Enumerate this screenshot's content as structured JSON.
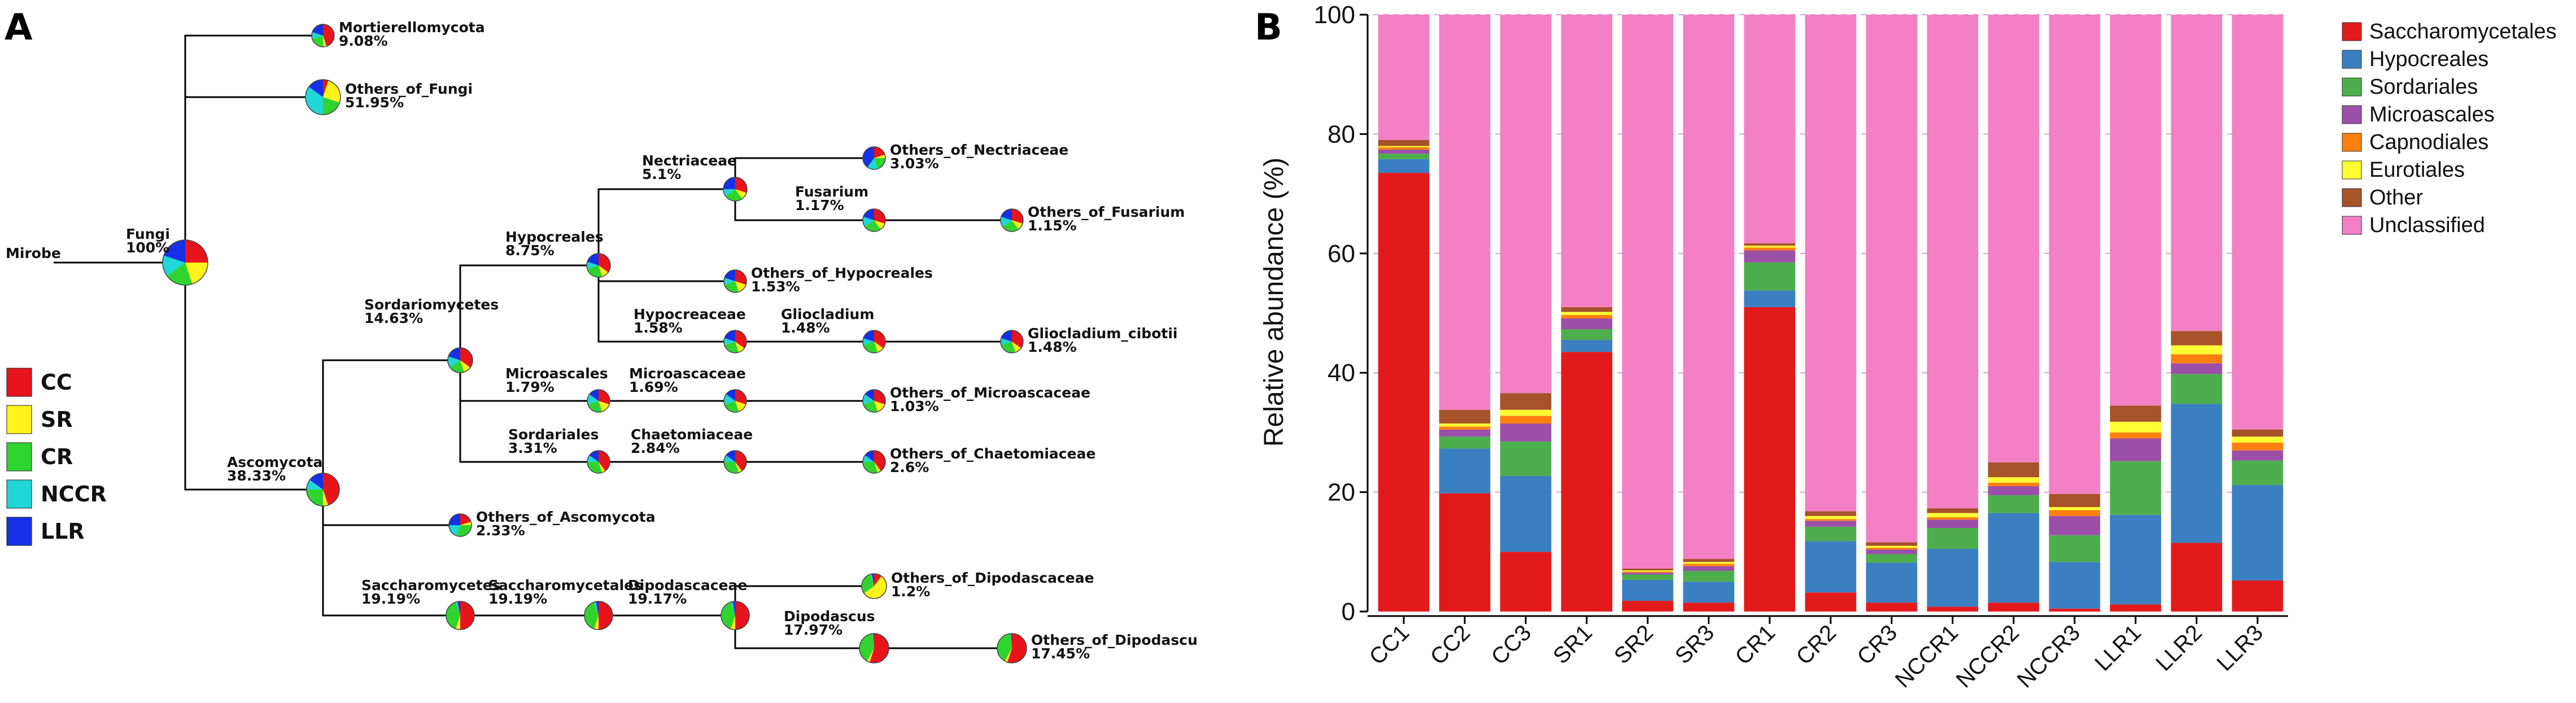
{
  "panel_a_label": "A",
  "panel_b_label": "B",
  "tree": {
    "root_label": "Mirobe",
    "sample_colors": {
      "CC": "#e8141b",
      "SR": "#fff21a",
      "CR": "#2fd42f",
      "NCCR": "#20d6d6",
      "LLR": "#1530e6"
    },
    "sample_legend": [
      {
        "label": "CC",
        "color": "#e8141b"
      },
      {
        "label": "SR",
        "color": "#fff21a"
      },
      {
        "label": "CR",
        "color": "#2fd42f"
      },
      {
        "label": "NCCR",
        "color": "#20d6d6"
      },
      {
        "label": "LLR",
        "color": "#1530e6"
      }
    ],
    "nodes": [
      {
        "id": "fungi",
        "name": "Fungi",
        "value": "100%",
        "parent": null,
        "pie": [
          0.25,
          0.2,
          0.2,
          0.15,
          0.2
        ]
      },
      {
        "id": "mortierellomycota",
        "name": "Mortierellomycota",
        "value": "9.08%",
        "parent": "fungi",
        "pie": [
          0.45,
          0.05,
          0.2,
          0.1,
          0.2
        ]
      },
      {
        "id": "others_fungi",
        "name": "Others_of_Fungi",
        "value": "51.95%",
        "parent": "fungi",
        "pie": [
          0.05,
          0.25,
          0.2,
          0.35,
          0.15
        ]
      },
      {
        "id": "ascomycota",
        "name": "Ascomycota",
        "value": "38.33%",
        "parent": "fungi",
        "pie": [
          0.45,
          0.05,
          0.25,
          0.1,
          0.15
        ]
      },
      {
        "id": "sordariomycetes",
        "name": "Sordariomycetes",
        "value": "14.63%",
        "parent": "ascomycota",
        "pie": [
          0.35,
          0.1,
          0.2,
          0.15,
          0.2
        ]
      },
      {
        "id": "others_ascomycota",
        "name": "Others_of_Ascomycota",
        "value": "2.33%",
        "parent": "ascomycota",
        "pie": [
          0.2,
          0.05,
          0.3,
          0.2,
          0.25
        ]
      },
      {
        "id": "saccharomycetes",
        "name": "Saccharomycetes",
        "value": "19.19%",
        "parent": "ascomycota",
        "pie": [
          0.5,
          0.05,
          0.4,
          0.02,
          0.03
        ]
      },
      {
        "id": "hypocreales",
        "name": "Hypocreales",
        "value": "8.75%",
        "parent": "sordariomycetes",
        "pie": [
          0.35,
          0.1,
          0.25,
          0.1,
          0.2
        ]
      },
      {
        "id": "microascales",
        "name": "Microascales",
        "value": "1.79%",
        "parent": "sordariomycetes",
        "pie": [
          0.3,
          0.15,
          0.25,
          0.15,
          0.15
        ]
      },
      {
        "id": "sordariales",
        "name": "Sordariales",
        "value": "3.31%",
        "parent": "sordariomycetes",
        "pie": [
          0.4,
          0.05,
          0.3,
          0.1,
          0.15
        ]
      },
      {
        "id": "nectriaceae",
        "name": "Nectriaceae",
        "value": "5.1%",
        "parent": "hypocreales",
        "pie": [
          0.3,
          0.1,
          0.25,
          0.1,
          0.25
        ]
      },
      {
        "id": "others_hypocreales",
        "name": "Others_of_Hypocreales",
        "value": "1.53%",
        "parent": "hypocreales",
        "pie": [
          0.3,
          0.15,
          0.25,
          0.1,
          0.2
        ]
      },
      {
        "id": "hypocreaceae",
        "name": "Hypocreaceae",
        "value": "1.58%",
        "parent": "hypocreales",
        "pie": [
          0.35,
          0.1,
          0.25,
          0.1,
          0.2
        ]
      },
      {
        "id": "microascaceae",
        "name": "Microascaceae",
        "value": "1.69%",
        "parent": "microascales",
        "pie": [
          0.3,
          0.15,
          0.25,
          0.15,
          0.15
        ]
      },
      {
        "id": "chaetomiaceae",
        "name": "Chaetomiaceae",
        "value": "2.84%",
        "parent": "sordariales",
        "pie": [
          0.4,
          0.05,
          0.3,
          0.1,
          0.15
        ]
      },
      {
        "id": "others_nectriaceae",
        "name": "Others_of_Nectriaceae",
        "value": "3.03%",
        "parent": "nectriaceae",
        "pie": [
          0.2,
          0.05,
          0.2,
          0.15,
          0.4
        ]
      },
      {
        "id": "fusarium",
        "name": "Fusarium",
        "value": "1.17%",
        "parent": "nectriaceae",
        "pie": [
          0.3,
          0.1,
          0.25,
          0.15,
          0.2
        ]
      },
      {
        "id": "others_fusarium",
        "name": "Others_of_Fusarium",
        "value": "1.15%",
        "parent": "fusarium",
        "pie": [
          0.3,
          0.1,
          0.25,
          0.15,
          0.2
        ]
      },
      {
        "id": "gliocladium",
        "name": "Gliocladium",
        "value": "1.48%",
        "parent": "hypocreaceae",
        "pie": [
          0.35,
          0.1,
          0.25,
          0.1,
          0.2
        ]
      },
      {
        "id": "gliocladium_cibotii",
        "name": "Gliocladium_cibotii",
        "value": "1.48%",
        "parent": "gliocladium",
        "pie": [
          0.35,
          0.1,
          0.25,
          0.1,
          0.2
        ]
      },
      {
        "id": "others_microascaceae",
        "name": "Others_of_Microascaceae",
        "value": "1.03%",
        "parent": "microascaceae",
        "pie": [
          0.3,
          0.15,
          0.25,
          0.15,
          0.15
        ]
      },
      {
        "id": "others_chaetomiaceae",
        "name": "Others_of_Chaetomiaceae",
        "value": "2.6%",
        "parent": "chaetomiaceae",
        "pie": [
          0.4,
          0.05,
          0.3,
          0.1,
          0.15
        ]
      },
      {
        "id": "saccharomycetales",
        "name": "Saccharomycetales",
        "value": "19.19%",
        "parent": "saccharomycetes",
        "pie": [
          0.5,
          0.05,
          0.4,
          0.02,
          0.03
        ]
      },
      {
        "id": "dipodascaceae",
        "name": "Dipodascaceae",
        "value": "19.17%",
        "parent": "saccharomycetales",
        "pie": [
          0.5,
          0.05,
          0.4,
          0.02,
          0.03
        ]
      },
      {
        "id": "others_dipodascaceae",
        "name": "Others_of_Dipodascaceae",
        "value": "1.2%",
        "parent": "dipodascaceae",
        "pie": [
          0.1,
          0.55,
          0.3,
          0.02,
          0.03
        ]
      },
      {
        "id": "dipodascus",
        "name": "Dipodascus",
        "value": "17.97%",
        "parent": "dipodascaceae",
        "pie": [
          0.55,
          0.03,
          0.4,
          0.01,
          0.01
        ]
      },
      {
        "id": "others_dipodascu",
        "name": "Others_of_Dipodascu",
        "value": "17.45%",
        "parent": "dipodascus",
        "pie": [
          0.55,
          0.03,
          0.4,
          0.01,
          0.01
        ]
      }
    ]
  },
  "chart_data": {
    "type": "bar",
    "stacked": true,
    "title": "",
    "xlabel": "",
    "ylabel": "Relative abundance (%)",
    "ylim": [
      0,
      100
    ],
    "yticks": [
      0,
      20,
      40,
      60,
      80,
      100
    ],
    "grid": true,
    "legend_position": "right",
    "categories": [
      "CC1",
      "CC2",
      "CC3",
      "SR1",
      "SR2",
      "SR3",
      "CR1",
      "CR2",
      "CR3",
      "NCCR1",
      "NCCR2",
      "NCCR3",
      "LLR1",
      "LLR2",
      "LLR3"
    ],
    "series": [
      {
        "name": "Saccharomycetales",
        "color": "#e31a1c",
        "values": [
          73.5,
          19.8,
          10.0,
          43.5,
          1.8,
          1.5,
          51.0,
          3.2,
          1.5,
          0.8,
          1.5,
          0.5,
          1.2,
          11.5,
          5.2
        ]
      },
      {
        "name": "Hypocreales",
        "color": "#3a7fc1",
        "values": [
          2.3,
          7.5,
          12.7,
          2.0,
          3.5,
          3.5,
          2.8,
          8.6,
          6.7,
          9.7,
          15.0,
          7.8,
          15.0,
          23.3,
          16.0
        ]
      },
      {
        "name": "Sordariales",
        "color": "#4cae4c",
        "values": [
          0.9,
          2.0,
          5.8,
          1.8,
          0.9,
          1.8,
          4.7,
          2.4,
          1.4,
          3.5,
          3.0,
          4.5,
          9.0,
          5.0,
          4.1
        ]
      },
      {
        "name": "Microascales",
        "color": "#9b4fa8",
        "values": [
          0.7,
          1.2,
          3.0,
          1.8,
          0.3,
          0.8,
          2.0,
          1.0,
          0.8,
          1.4,
          1.5,
          3.2,
          3.8,
          1.8,
          1.7
        ]
      },
      {
        "name": "Capnodiales",
        "color": "#ff7f0e",
        "values": [
          0.4,
          0.5,
          1.3,
          0.6,
          0.2,
          0.4,
          0.5,
          0.3,
          0.3,
          0.4,
          0.6,
          1.0,
          1.0,
          1.5,
          1.3
        ]
      },
      {
        "name": "Eurotiales",
        "color": "#ffff33",
        "values": [
          0.2,
          0.5,
          1.0,
          0.5,
          0.2,
          0.3,
          0.3,
          0.5,
          0.3,
          0.7,
          0.9,
          0.5,
          1.8,
          1.5,
          1.0
        ]
      },
      {
        "name": "Other",
        "color": "#a6522a",
        "values": [
          1.0,
          2.3,
          2.8,
          0.8,
          0.3,
          0.5,
          0.4,
          0.8,
          0.6,
          0.8,
          2.5,
          2.2,
          2.7,
          2.4,
          1.2
        ]
      },
      {
        "name": "Unclassified",
        "color": "#f37fc5",
        "values": [
          21.0,
          66.2,
          63.4,
          49.0,
          92.8,
          91.2,
          38.3,
          83.2,
          88.4,
          82.7,
          75.0,
          80.3,
          65.5,
          53.0,
          69.5
        ]
      }
    ]
  }
}
